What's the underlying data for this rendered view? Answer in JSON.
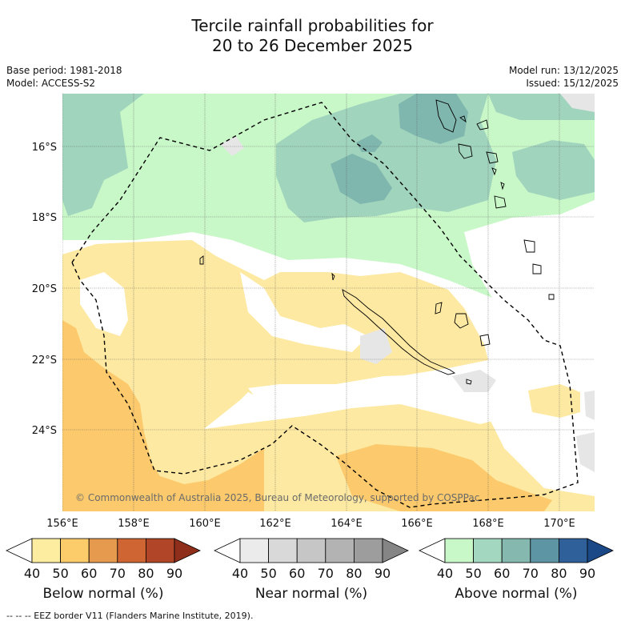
{
  "title_line1": "Tercile rainfall probabilities for",
  "title_line2": "20 to 26 December 2025",
  "base_period": "Base period: 1981-2018",
  "model": "Model: ACCESS-S2",
  "model_run": "Model run: 13/12/2025",
  "issued": "Issued: 15/12/2025",
  "copyright": "© Commonwealth of Australia 2025, Bureau of Meteorology, supported by COSPPac",
  "footnote": "--  --  -- EEZ border V11 (Flanders Marine Institute, 2019).",
  "latitudes": [
    "16°S",
    "18°S",
    "20°S",
    "22°S",
    "24°S"
  ],
  "longitudes": [
    "156°E",
    "158°E",
    "160°E",
    "162°E",
    "164°E",
    "166°E",
    "168°E",
    "170°E"
  ],
  "colorbars": [
    {
      "title": "Below normal (%)",
      "ticks": [
        "40",
        "50",
        "60",
        "70",
        "80",
        "90"
      ],
      "colors": [
        "#ffffff",
        "#fdeda0",
        "#fccb6a",
        "#e59a4e",
        "#cf6532",
        "#b04528",
        "#8e2e1b"
      ]
    },
    {
      "title": "Near normal (%)",
      "ticks": [
        "40",
        "50",
        "60",
        "70",
        "80",
        "90"
      ],
      "colors": [
        "#ffffff",
        "#ebebeb",
        "#d9d9d9",
        "#c6c6c6",
        "#b3b3b3",
        "#9d9d9d",
        "#858585"
      ]
    },
    {
      "title": "Above normal (%)",
      "ticks": [
        "40",
        "50",
        "60",
        "70",
        "80",
        "90"
      ],
      "colors": [
        "#ffffff",
        "#c8f7c8",
        "#a3d7bf",
        "#85b9b0",
        "#5d95a5",
        "#30609a",
        "#1b4886"
      ]
    }
  ],
  "palette": {
    "above50": "#c8f7c8",
    "above60": "#a0d4bd",
    "above70": "#7fb6ad",
    "above80": "#5f98a4",
    "below50": "#fde9a2",
    "below60": "#fcca6c",
    "near50": "#e6e6e6"
  }
}
